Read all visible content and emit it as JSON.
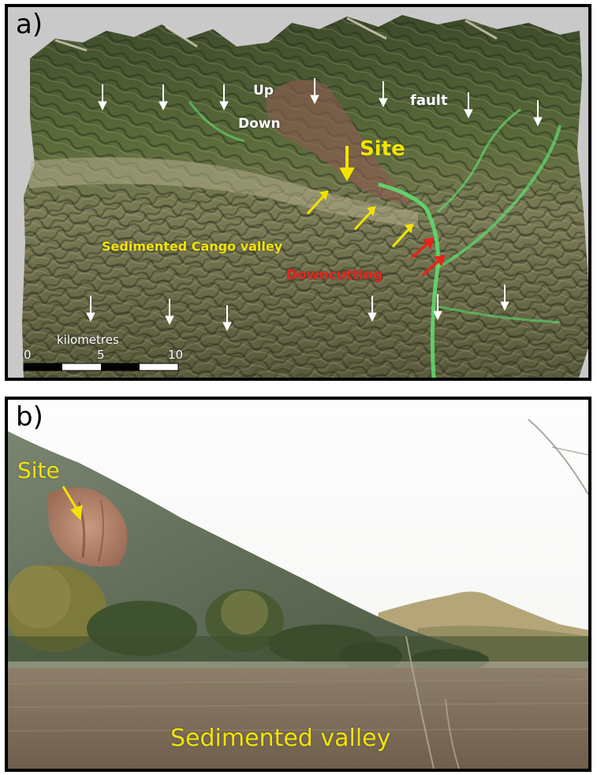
{
  "panel_a": {
    "label": "a)",
    "labels": {
      "up": "Up",
      "down": "Down",
      "fault": "fault",
      "site": "Site",
      "valley": "Sedimented Cango valley",
      "downcutting": "Downcutting"
    },
    "scale_bar": {
      "unit": "kilometres",
      "ticks": [
        "0",
        "5",
        "10"
      ]
    },
    "colors": {
      "fault_arrows": "#ffffff",
      "valley_arrows": "#f2e400",
      "downcutting_arrows": "#e8241c"
    }
  },
  "panel_b": {
    "label": "b)",
    "labels": {
      "site": "Site",
      "valley": "Sedimented valley"
    },
    "colors": {
      "text": "#f2e400"
    }
  }
}
